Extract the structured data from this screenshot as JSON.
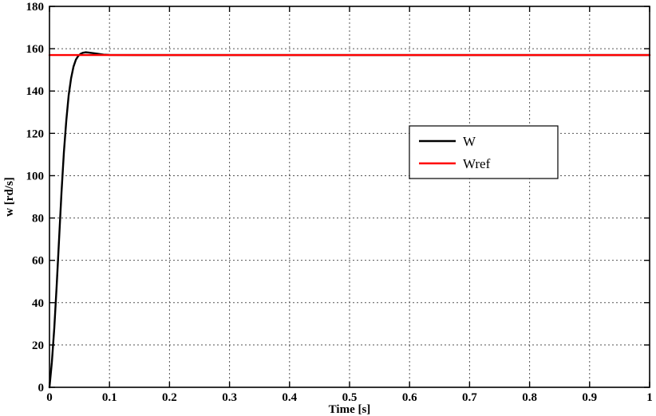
{
  "figure": {
    "background": "#ffffff",
    "axis_color": "#000000",
    "grid_color": "#555555"
  },
  "chart_data": {
    "type": "line",
    "title": "",
    "xlabel": "Time [s]",
    "ylabel": "w [rd/s]",
    "xlim": [
      0,
      1
    ],
    "ylim": [
      0,
      180
    ],
    "xticks": [
      0,
      0.1,
      0.2,
      0.3,
      0.4,
      0.5,
      0.6,
      0.7,
      0.8,
      0.9,
      1
    ],
    "xtick_labels": [
      "0",
      "0.1",
      "0.2",
      "0.3",
      "0.4",
      "0.5",
      "0.6",
      "0.7",
      "0.8",
      "0.9",
      "1"
    ],
    "yticks": [
      0,
      20,
      40,
      60,
      80,
      100,
      120,
      140,
      160,
      180
    ],
    "ytick_labels": [
      "0",
      "20",
      "40",
      "60",
      "80",
      "100",
      "120",
      "140",
      "160",
      "180"
    ],
    "grid": true,
    "grid_style": "dashed",
    "legend": {
      "position": "center-right",
      "entries": [
        "W",
        "Wref"
      ]
    },
    "series": [
      {
        "name": "W",
        "color": "#000000",
        "line_width": 2.4,
        "x": [
          0,
          0.004,
          0.008,
          0.012,
          0.016,
          0.02,
          0.024,
          0.028,
          0.032,
          0.036,
          0.04,
          0.044,
          0.048,
          0.052,
          0.056,
          0.06,
          0.065,
          0.07,
          0.08,
          0.09,
          0.1,
          0.15,
          0.2,
          0.3,
          0.4,
          0.5,
          0.6,
          0.7,
          0.8,
          0.9,
          1
        ],
        "y": [
          0,
          12,
          28,
          48,
          70,
          92,
          111,
          126,
          138,
          146,
          151.5,
          154.8,
          156.6,
          157.6,
          158.1,
          158.3,
          158.2,
          158,
          157.6,
          157.2,
          157.05,
          157,
          157,
          157,
          157,
          157,
          157,
          157,
          157,
          157,
          157
        ]
      },
      {
        "name": "Wref",
        "color": "#ff0000",
        "line_width": 2.4,
        "x": [
          0,
          1
        ],
        "y": [
          157,
          157
        ]
      }
    ]
  }
}
